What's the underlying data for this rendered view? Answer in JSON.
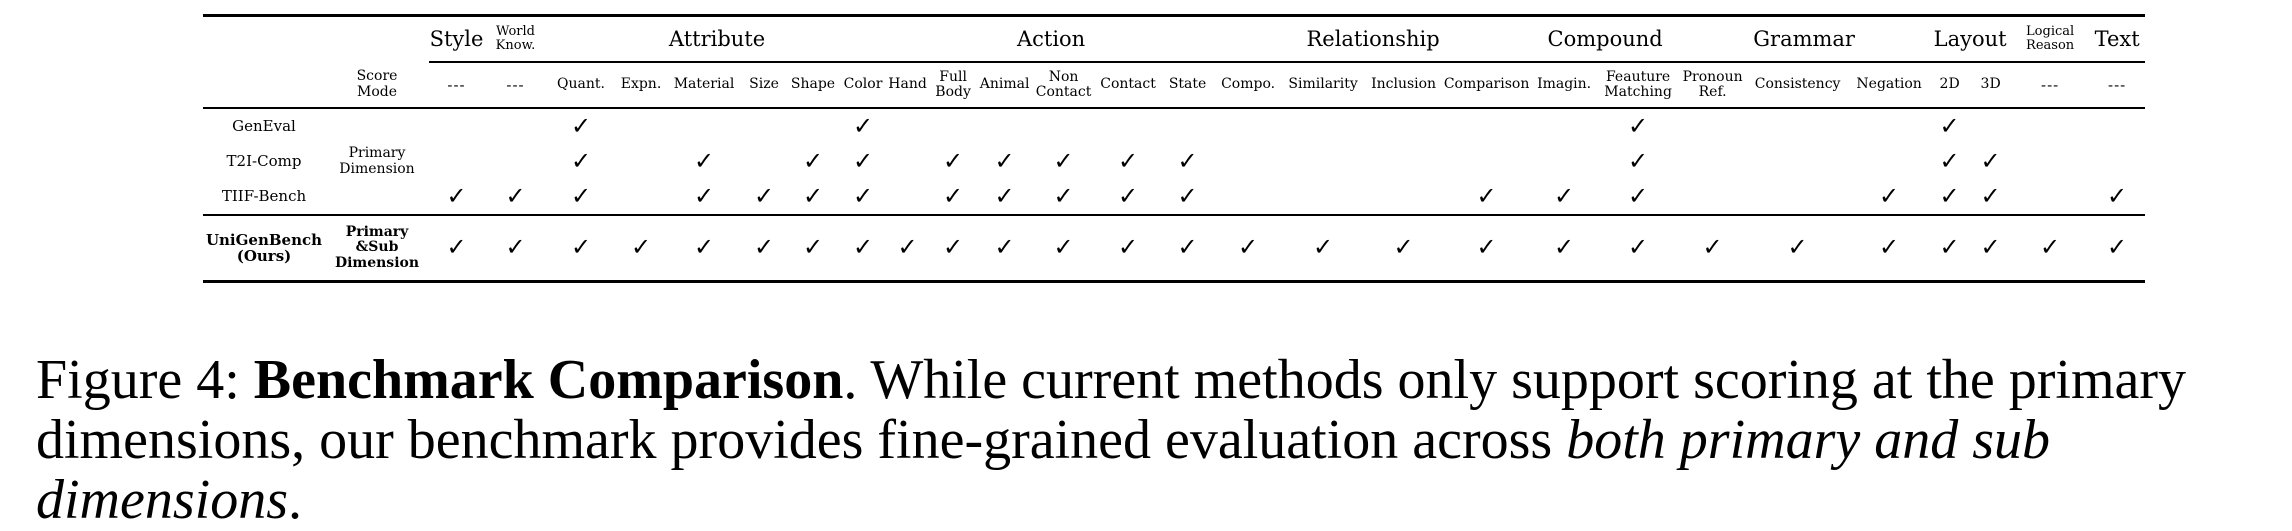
{
  "table": {
    "score_mode_header": "Score\nMode",
    "groups": [
      {
        "label": "Style",
        "span": 1,
        "size": "normal"
      },
      {
        "label": "World\nKnow.",
        "span": 1,
        "size": "tiny"
      },
      {
        "label": "Attribute",
        "span": 6,
        "size": "normal"
      },
      {
        "label": "Action",
        "span": 6,
        "size": "normal"
      },
      {
        "label": "Relationship",
        "span": 4,
        "size": "normal"
      },
      {
        "label": "Compound",
        "span": 2,
        "size": "normal"
      },
      {
        "label": "Grammar",
        "span": 3,
        "size": "normal"
      },
      {
        "label": "Layout",
        "span": 2,
        "size": "normal"
      },
      {
        "label": "Logical\nReason",
        "span": 1,
        "size": "tiny"
      },
      {
        "label": "Text",
        "span": 1,
        "size": "normal"
      }
    ],
    "sub_columns": [
      "---",
      "---",
      "Quant.",
      "Expn.",
      "Material",
      "Size",
      "Shape",
      "Color",
      "Hand",
      "Full\nBody",
      "Animal",
      "Non\nContact",
      "Contact",
      "State",
      "Compo.",
      "Similarity",
      "Inclusion",
      "Comparison",
      "Imagin.",
      "Feauture\nMatching",
      "Pronoun\nRef.",
      "Consistency",
      "Negation",
      "2D",
      "3D",
      "---",
      "---"
    ],
    "check_symbol": "✓",
    "rows": [
      {
        "name": "GenEval",
        "mode": "",
        "bold": false,
        "checks": [
          0,
          0,
          1,
          0,
          0,
          0,
          0,
          1,
          0,
          0,
          0,
          0,
          0,
          0,
          0,
          0,
          0,
          0,
          0,
          1,
          0,
          0,
          0,
          1,
          0,
          0,
          0
        ]
      },
      {
        "name": "T2I-Comp",
        "mode": "Primary\nDimension",
        "bold": false,
        "checks": [
          0,
          0,
          1,
          0,
          1,
          0,
          1,
          1,
          0,
          1,
          1,
          1,
          1,
          1,
          0,
          0,
          0,
          0,
          0,
          1,
          0,
          0,
          0,
          1,
          1,
          0,
          0
        ]
      },
      {
        "name": "TIIF-Bench",
        "mode": "",
        "bold": false,
        "checks": [
          1,
          1,
          1,
          0,
          1,
          1,
          1,
          1,
          0,
          1,
          1,
          1,
          1,
          1,
          0,
          0,
          0,
          1,
          1,
          1,
          0,
          0,
          1,
          1,
          1,
          0,
          1
        ]
      },
      {
        "name": "UniGenBench\n(Ours)",
        "mode": "Primary\n&Sub\nDimension",
        "bold": true,
        "checks": [
          1,
          1,
          1,
          1,
          1,
          1,
          1,
          1,
          1,
          1,
          1,
          1,
          1,
          1,
          1,
          1,
          1,
          1,
          1,
          1,
          1,
          1,
          1,
          1,
          1,
          1,
          1
        ]
      }
    ]
  },
  "caption": {
    "label": "Figure 4: ",
    "title": "Benchmark Comparison",
    "text_before_italic": ". While current methods only support scoring at the primary dimensions, our benchmark provides fine-grained evaluation across ",
    "italic": "both primary and sub dimensions",
    "text_after_italic": "."
  }
}
